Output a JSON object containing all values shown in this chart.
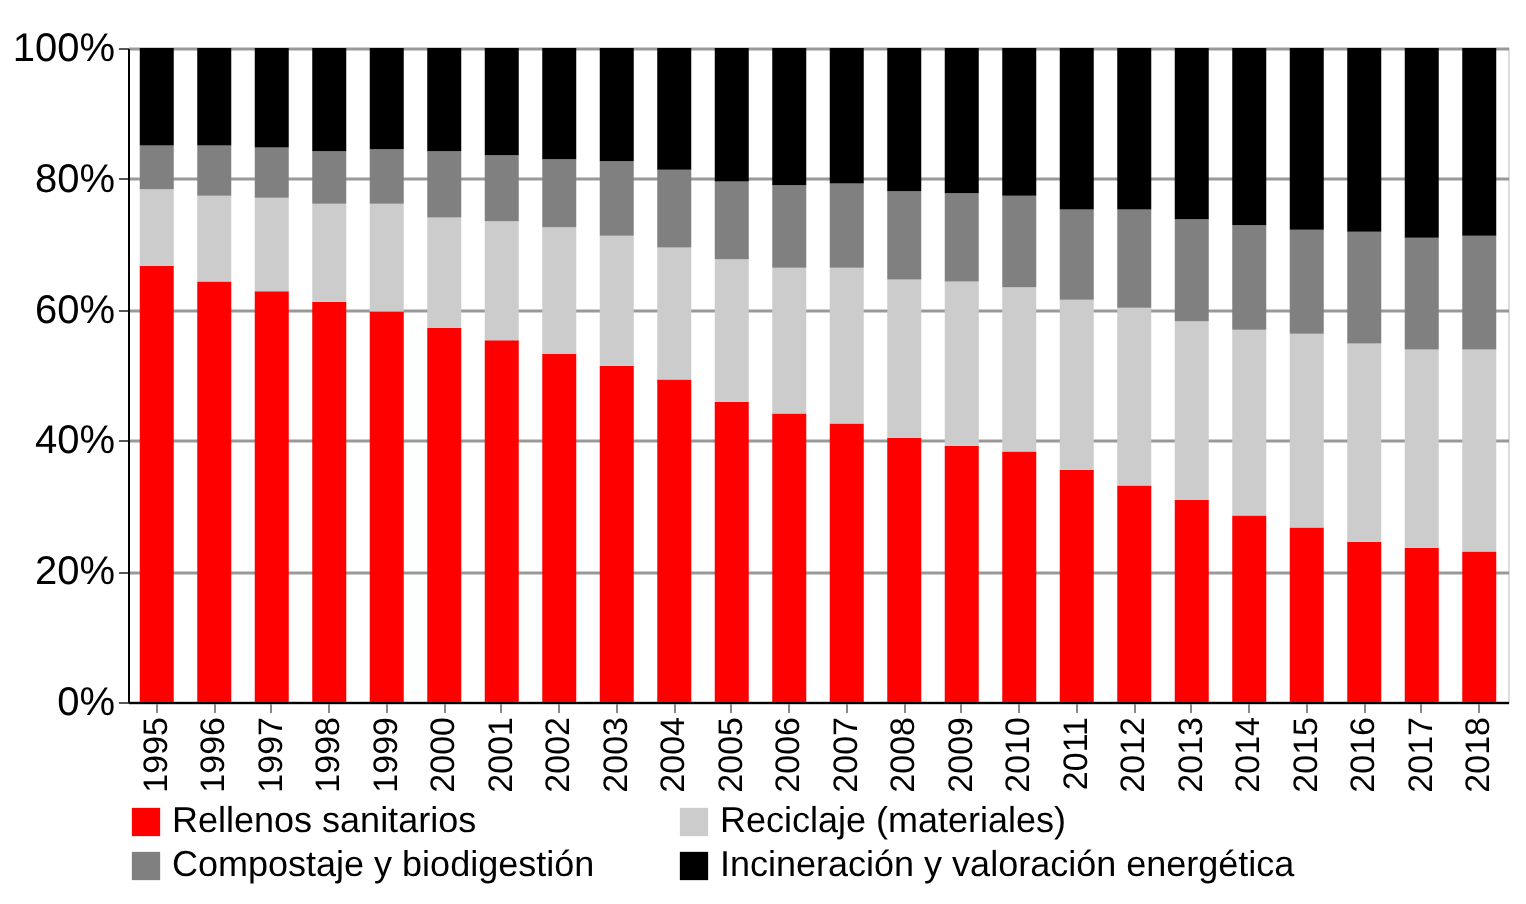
{
  "chart_data": {
    "type": "bar",
    "stacked": true,
    "categories": [
      "1995",
      "1996",
      "1997",
      "1998",
      "1999",
      "2000",
      "2001",
      "2002",
      "2003",
      "2004",
      "2005",
      "2006",
      "2007",
      "2008",
      "2009",
      "2010",
      "2011",
      "2012",
      "2013",
      "2014",
      "2015",
      "2016",
      "2017",
      "2018"
    ],
    "series": [
      {
        "name": "Rellenos sanitarios",
        "color": "#ff0000",
        "values": [
          66.7,
          64.3,
          62.8,
          61.2,
          59.7,
          57.2,
          55.3,
          53.2,
          51.4,
          49.3,
          45.9,
          44.1,
          42.6,
          40.4,
          39.2,
          38.3,
          35.5,
          33.1,
          30.9,
          28.5,
          26.7,
          24.5,
          23.6,
          23.0
        ]
      },
      {
        "name": "Reciclaje (materiales)",
        "color": "#cccccc",
        "values": [
          11.7,
          13.1,
          14.3,
          15.0,
          16.5,
          16.9,
          18.2,
          19.4,
          19.9,
          20.2,
          21.8,
          22.3,
          23.8,
          24.2,
          25.1,
          25.1,
          26.0,
          27.2,
          27.3,
          28.4,
          29.6,
          30.3,
          30.3,
          30.9
        ]
      },
      {
        "name": "Compostaje y biodigestión",
        "color": "#808080",
        "values": [
          6.7,
          7.7,
          7.7,
          8.0,
          8.3,
          10.1,
          10.1,
          10.4,
          11.4,
          11.9,
          11.9,
          12.6,
          12.9,
          13.5,
          13.5,
          14.0,
          13.8,
          15.0,
          15.6,
          16.0,
          15.9,
          17.1,
          17.1,
          17.4
        ]
      },
      {
        "name": "Incineración y valoración energética",
        "color": "#000000",
        "values": [
          14.9,
          14.9,
          15.2,
          15.8,
          15.5,
          15.8,
          16.4,
          17.0,
          17.3,
          18.6,
          20.4,
          21.0,
          20.7,
          21.9,
          22.2,
          22.6,
          24.7,
          24.7,
          26.2,
          27.1,
          27.8,
          28.1,
          29.0,
          28.7
        ]
      }
    ],
    "ylim": [
      0,
      100
    ],
    "yticks": [
      {
        "value": 0,
        "label": "0%"
      },
      {
        "value": 20,
        "label": "20%"
      },
      {
        "value": 40,
        "label": "40%"
      },
      {
        "value": 60,
        "label": "60%"
      },
      {
        "value": 80,
        "label": "80%"
      },
      {
        "value": 100,
        "label": "100%"
      }
    ],
    "grid": "y",
    "legend": "bottom"
  }
}
